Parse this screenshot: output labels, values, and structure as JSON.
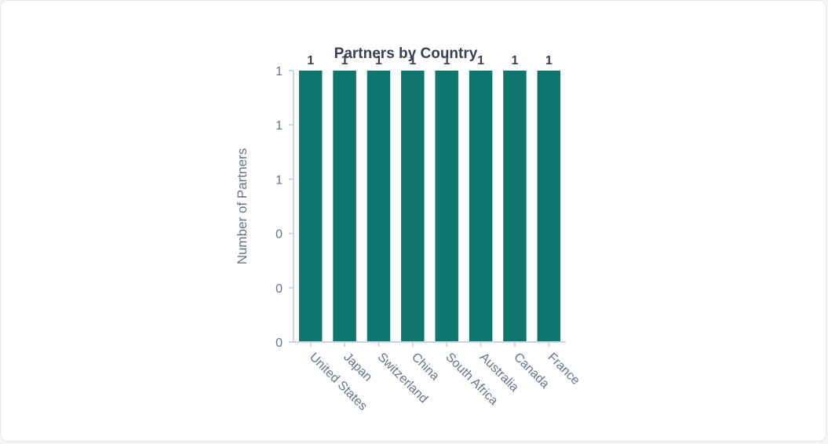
{
  "chart_data": {
    "type": "bar",
    "title": "Partners by Country",
    "xlabel": "",
    "ylabel": "Number of Partners",
    "categories": [
      "United States",
      "Japan",
      "Switzerland",
      "China",
      "South Africa",
      "Australia",
      "Canada",
      "France"
    ],
    "values": [
      1,
      1,
      1,
      1,
      1,
      1,
      1,
      1
    ],
    "data_labels": [
      "1",
      "1",
      "1",
      "1",
      "1",
      "1",
      "1",
      "1"
    ],
    "y_tick_labels": [
      "0",
      "0",
      "0",
      "1",
      "1",
      "1"
    ],
    "ylim": [
      0,
      1
    ],
    "bar_color": "#0f766e",
    "grid": false,
    "legend": "none"
  }
}
